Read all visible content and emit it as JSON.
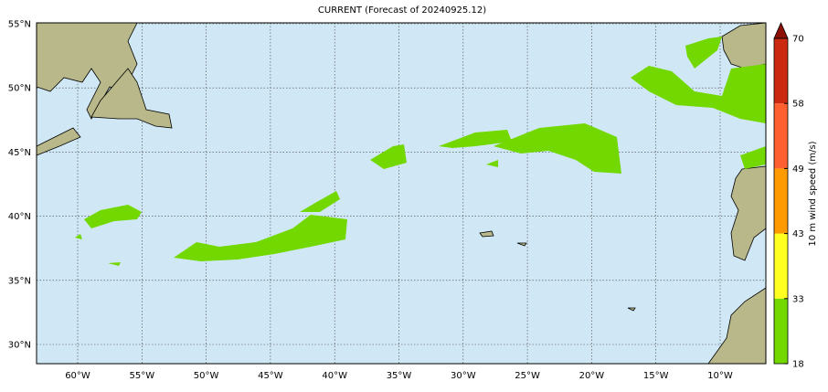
{
  "title": "CURRENT (Forecast of 20240925.12)",
  "lat_labels": [
    "55°N",
    "50°N",
    "45°N",
    "40°N",
    "35°N",
    "30°N"
  ],
  "lon_labels": [
    "60°W",
    "55°W",
    "50°W",
    "45°W",
    "40°W",
    "35°W",
    "30°W",
    "25°W",
    "20°W",
    "15°W",
    "10°W"
  ],
  "colorbar": {
    "label": "10 m wind speed (m/s)",
    "ticks": [
      "18",
      "33",
      "43",
      "49",
      "58",
      "70"
    ],
    "colors": [
      "#72d800",
      "#ffff20",
      "#ff9a00",
      "#ff6030",
      "#cc2a10"
    ],
    "extend_color": "#8b0f05"
  }
}
